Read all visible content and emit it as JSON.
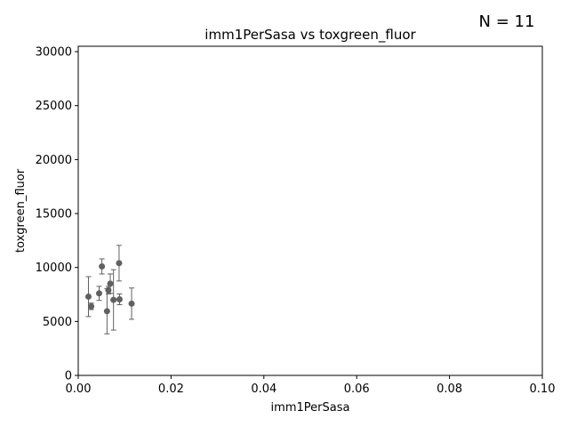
{
  "chart_data": {
    "type": "scatter",
    "title": "imm1PerSasa vs toxgreen_fluor",
    "xlabel": "imm1PerSasa",
    "ylabel": "toxgreen_fluor",
    "annotation": "N = 11",
    "xlim": [
      0,
      0.1
    ],
    "ylim": [
      0,
      30500
    ],
    "x_ticks": [
      0,
      0.02,
      0.04,
      0.06,
      0.08,
      0.1
    ],
    "x_tick_labels": [
      "0.00",
      "0.02",
      "0.04",
      "0.06",
      "0.08",
      "0.10"
    ],
    "y_ticks": [
      0,
      5000,
      10000,
      15000,
      20000,
      25000,
      30000
    ],
    "y_tick_labels": [
      "0",
      "5000",
      "10000",
      "15000",
      "20000",
      "25000",
      "30000"
    ],
    "grid": false,
    "marker_color": "#606060",
    "points": [
      {
        "x": 0.0022,
        "y": 7300,
        "err": 1850
      },
      {
        "x": 0.0028,
        "y": 6400,
        "err": 300
      },
      {
        "x": 0.0045,
        "y": 7600,
        "err": 650
      },
      {
        "x": 0.0051,
        "y": 10100,
        "err": 700
      },
      {
        "x": 0.0062,
        "y": 5950,
        "err": 2100
      },
      {
        "x": 0.0065,
        "y": 7900,
        "err": 350
      },
      {
        "x": 0.0069,
        "y": 8500,
        "err": 900
      },
      {
        "x": 0.0076,
        "y": 7000,
        "err": 2800
      },
      {
        "x": 0.0088,
        "y": 10400,
        "err": 1650
      },
      {
        "x": 0.0089,
        "y": 7050,
        "err": 500
      },
      {
        "x": 0.0115,
        "y": 6650,
        "err": 1450
      }
    ]
  }
}
